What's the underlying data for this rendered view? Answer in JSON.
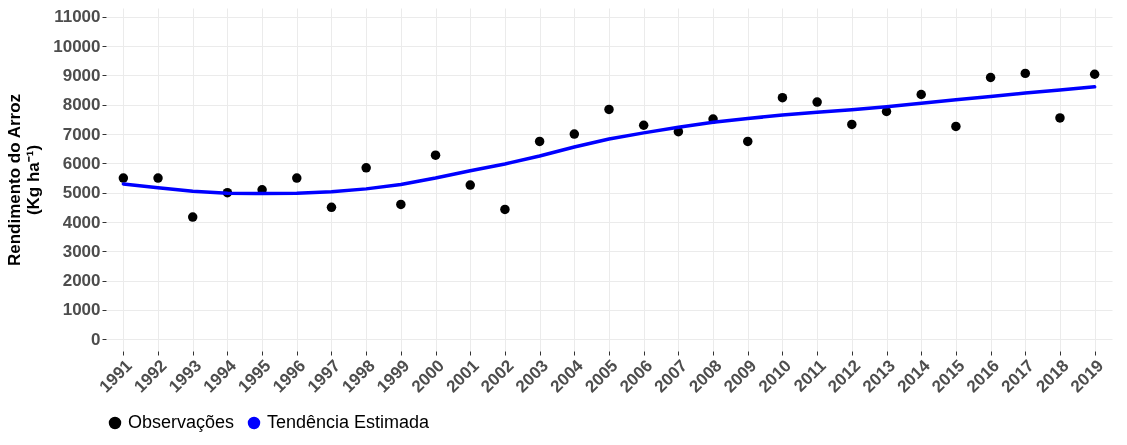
{
  "chart_data": {
    "type": "scatter",
    "ylabel": "Rendimento do Arroz\n(Kg ha⁻¹)",
    "categories": [
      "1991",
      "1992",
      "1993",
      "1994",
      "1995",
      "1996",
      "1997",
      "1998",
      "1999",
      "2000",
      "2001",
      "2002",
      "2003",
      "2004",
      "2005",
      "2006",
      "2007",
      "2008",
      "2009",
      "2010",
      "2011",
      "2012",
      "2013",
      "2014",
      "2015",
      "2016",
      "2017",
      "2018",
      "2019"
    ],
    "series": [
      {
        "name": "Observações",
        "type": "scatter",
        "color": "#000000",
        "marker": "circle",
        "values": [
          5500,
          5500,
          4170,
          5000,
          5100,
          5500,
          4500,
          5850,
          4600,
          6280,
          5260,
          4430,
          6750,
          7000,
          7840,
          7300,
          7080,
          7510,
          6750,
          8240,
          8090,
          7330,
          7770,
          8350,
          7260,
          8930,
          9070,
          7550,
          9040
        ]
      },
      {
        "name": "Tendência Estimada",
        "type": "line",
        "color": "#0000ff",
        "line_style": "solid",
        "values": [
          5300,
          5170,
          5050,
          4980,
          4970,
          4980,
          5030,
          5130,
          5280,
          5500,
          5750,
          5980,
          6250,
          6560,
          6830,
          7040,
          7230,
          7400,
          7530,
          7650,
          7740,
          7830,
          7930,
          8050,
          8170,
          8280,
          8400,
          8500,
          8610
        ]
      }
    ],
    "ylim": [
      -400,
      11300
    ],
    "yticks": [
      0,
      1000,
      2000,
      3000,
      4000,
      5000,
      6000,
      7000,
      8000,
      9000,
      10000,
      11000
    ],
    "grid": true,
    "legend": "bottom"
  }
}
